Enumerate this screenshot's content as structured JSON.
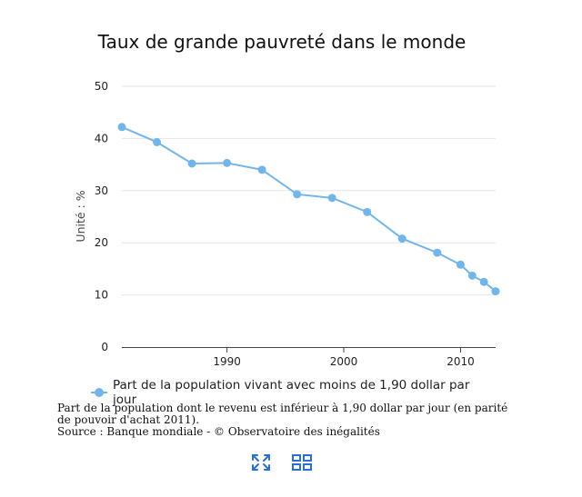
{
  "chart_data": {
    "type": "line",
    "title": "Taux de grande pauvreté dans le monde",
    "ylabel": "Unité : %",
    "xlabel": "",
    "xlim": [
      1981,
      2013
    ],
    "ylim": [
      0,
      50
    ],
    "yticks": [
      0,
      10,
      20,
      30,
      40,
      50
    ],
    "xticks": [
      1990,
      2000,
      2010
    ],
    "grid": true,
    "legend_position": "bottom",
    "color": "#74b5e9",
    "series": [
      {
        "name": "Part de la population vivant avec moins de 1,90 dollar par jour",
        "x": [
          1981,
          1984,
          1987,
          1990,
          1993,
          1996,
          1999,
          2002,
          2005,
          2008,
          2010,
          2011,
          2012,
          2013
        ],
        "values": [
          42.2,
          39.3,
          35.2,
          35.3,
          34.0,
          29.3,
          28.6,
          25.9,
          20.8,
          18.1,
          15.8,
          13.7,
          12.5,
          10.7
        ]
      }
    ]
  },
  "notes": {
    "definition": "Part de la population dont le revenu est inférieur à 1,90 dollar par jour (en parité de pouvoir d'achat 2011).",
    "source": "Source : Banque mondiale - © Observatoire des inégalités"
  },
  "toolbar": {
    "fullscreen_icon": "fullscreen-icon",
    "grid_icon": "grid-view-icon",
    "icon_color": "#2a6fd1"
  }
}
